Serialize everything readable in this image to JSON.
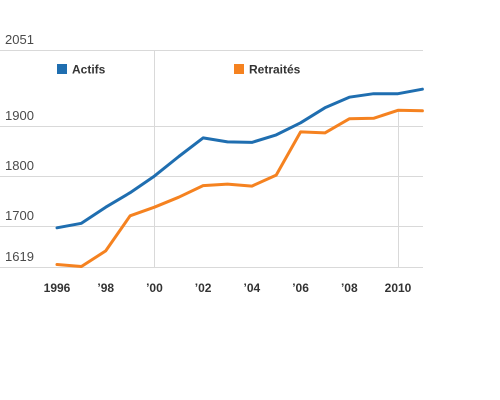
{
  "chart_data": {
    "type": "line",
    "title": "",
    "xlabel": "",
    "ylabel": "",
    "x": [
      1996,
      1997,
      1998,
      1999,
      2000,
      2001,
      2002,
      2003,
      2004,
      2005,
      2006,
      2007,
      2008,
      2009,
      2010,
      2011
    ],
    "x_ticks": [
      {
        "value": 1996,
        "label": "1996"
      },
      {
        "value": 1998,
        "label": "’98"
      },
      {
        "value": 2000,
        "label": "’00"
      },
      {
        "value": 2002,
        "label": "’02"
      },
      {
        "value": 2004,
        "label": "’04"
      },
      {
        "value": 2006,
        "label": "’06"
      },
      {
        "value": 2008,
        "label": "’08"
      },
      {
        "value": 2010,
        "label": "2010"
      }
    ],
    "y_ticks": [
      {
        "value": 1619,
        "label": "1619"
      },
      {
        "value": 1700,
        "label": "1700"
      },
      {
        "value": 1800,
        "label": "1800"
      },
      {
        "value": 1900,
        "label": "1900"
      },
      {
        "value": 2051,
        "label": "2051"
      }
    ],
    "ylim": [
      1619,
      2051
    ],
    "xlim": [
      1996,
      2011
    ],
    "grid": true,
    "legend_position": "top",
    "series": [
      {
        "name": "Actifs",
        "color": "#1f6eb0",
        "values": [
          1697,
          1706,
          1738,
          1767,
          1800,
          1839,
          1876,
          1868,
          1867,
          1882,
          1906,
          1936,
          1957,
          1964,
          1964,
          1973
        ]
      },
      {
        "name": "Retraités",
        "color": "#f58220",
        "values": [
          1624,
          1620,
          1651,
          1721,
          1738,
          1758,
          1781,
          1784,
          1780,
          1802,
          1888,
          1886,
          1914,
          1915,
          1931,
          1930
        ]
      }
    ]
  }
}
